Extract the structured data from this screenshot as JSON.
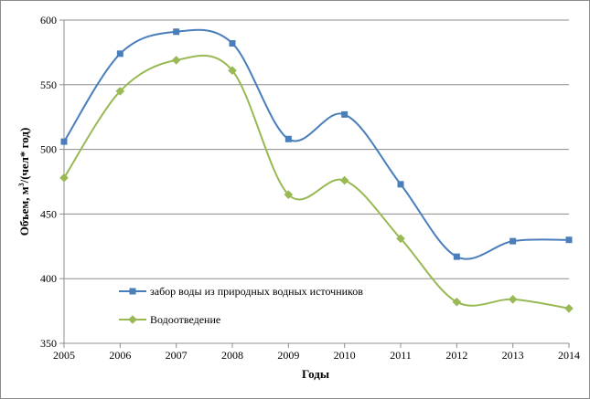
{
  "chart_data": {
    "type": "line",
    "x": [
      "2005",
      "2006",
      "2007",
      "2008",
      "2009",
      "2010",
      "2011",
      "2012",
      "2013",
      "2014"
    ],
    "series": [
      {
        "name": "забор воды из природных водных источников",
        "values": [
          506,
          574,
          591,
          582,
          508,
          527,
          473,
          417,
          429,
          430
        ],
        "color": "#4a7ebb",
        "marker": "square"
      },
      {
        "name": "Водоотведение",
        "values": [
          478,
          545,
          569,
          561,
          465,
          476,
          431,
          382,
          384,
          377
        ],
        "color": "#98b954",
        "marker": "diamond"
      }
    ],
    "xlabel": "Годы",
    "ylabel_main": "Объем, м",
    "ylabel_sup": "3",
    "ylabel_rest": "/(чел* год)",
    "ylim": [
      350,
      600
    ],
    "yticks": [
      350,
      400,
      450,
      500,
      550,
      600
    ],
    "grid": "horizontal",
    "smooth": true,
    "legend_position": "bottom-left-inside"
  }
}
